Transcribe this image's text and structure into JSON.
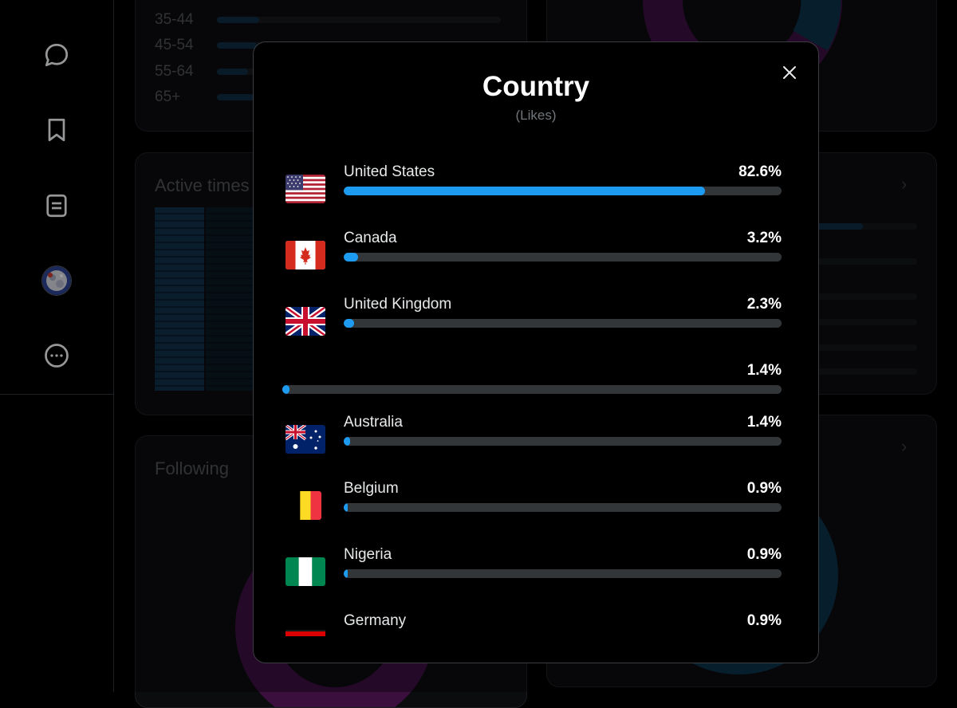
{
  "sidebar": {
    "items": [
      {
        "icon": "chat-bubble-icon"
      },
      {
        "icon": "bookmark-icon"
      },
      {
        "icon": "list-document-icon"
      },
      {
        "icon": "avatar"
      },
      {
        "icon": "more-circle-icon"
      }
    ]
  },
  "background": {
    "age_groups": [
      {
        "label": "35-44",
        "value": 15
      },
      {
        "label": "45-54",
        "value": 14
      },
      {
        "label": "55-64",
        "value": 11
      },
      {
        "label": "65+",
        "value": 13
      }
    ],
    "active_times_title": "Active times",
    "following_title": "Following"
  },
  "modal": {
    "title": "Country",
    "subtitle": "(Likes)",
    "colors": {
      "bar": "#1d9bf0",
      "track": "#333639"
    },
    "countries": [
      {
        "name": "United States",
        "percent_label": "82.6%",
        "value": 82.6,
        "flag": "us-flag"
      },
      {
        "name": "Canada",
        "percent_label": "3.2%",
        "value": 3.2,
        "flag": "canada-flag"
      },
      {
        "name": "United Kingdom",
        "percent_label": "2.3%",
        "value": 2.3,
        "flag": "uk-flag"
      },
      {
        "name": "",
        "percent_label": "1.4%",
        "value": 1.4,
        "flag": ""
      },
      {
        "name": "Australia",
        "percent_label": "1.4%",
        "value": 1.4,
        "flag": "australia-flag"
      },
      {
        "name": "Belgium",
        "percent_label": "0.9%",
        "value": 0.9,
        "flag": "belgium-flag"
      },
      {
        "name": "Nigeria",
        "percent_label": "0.9%",
        "value": 0.9,
        "flag": "nigeria-flag"
      },
      {
        "name": "Germany",
        "percent_label": "0.9%",
        "value": 0.9,
        "flag": "germany-flag"
      }
    ]
  }
}
